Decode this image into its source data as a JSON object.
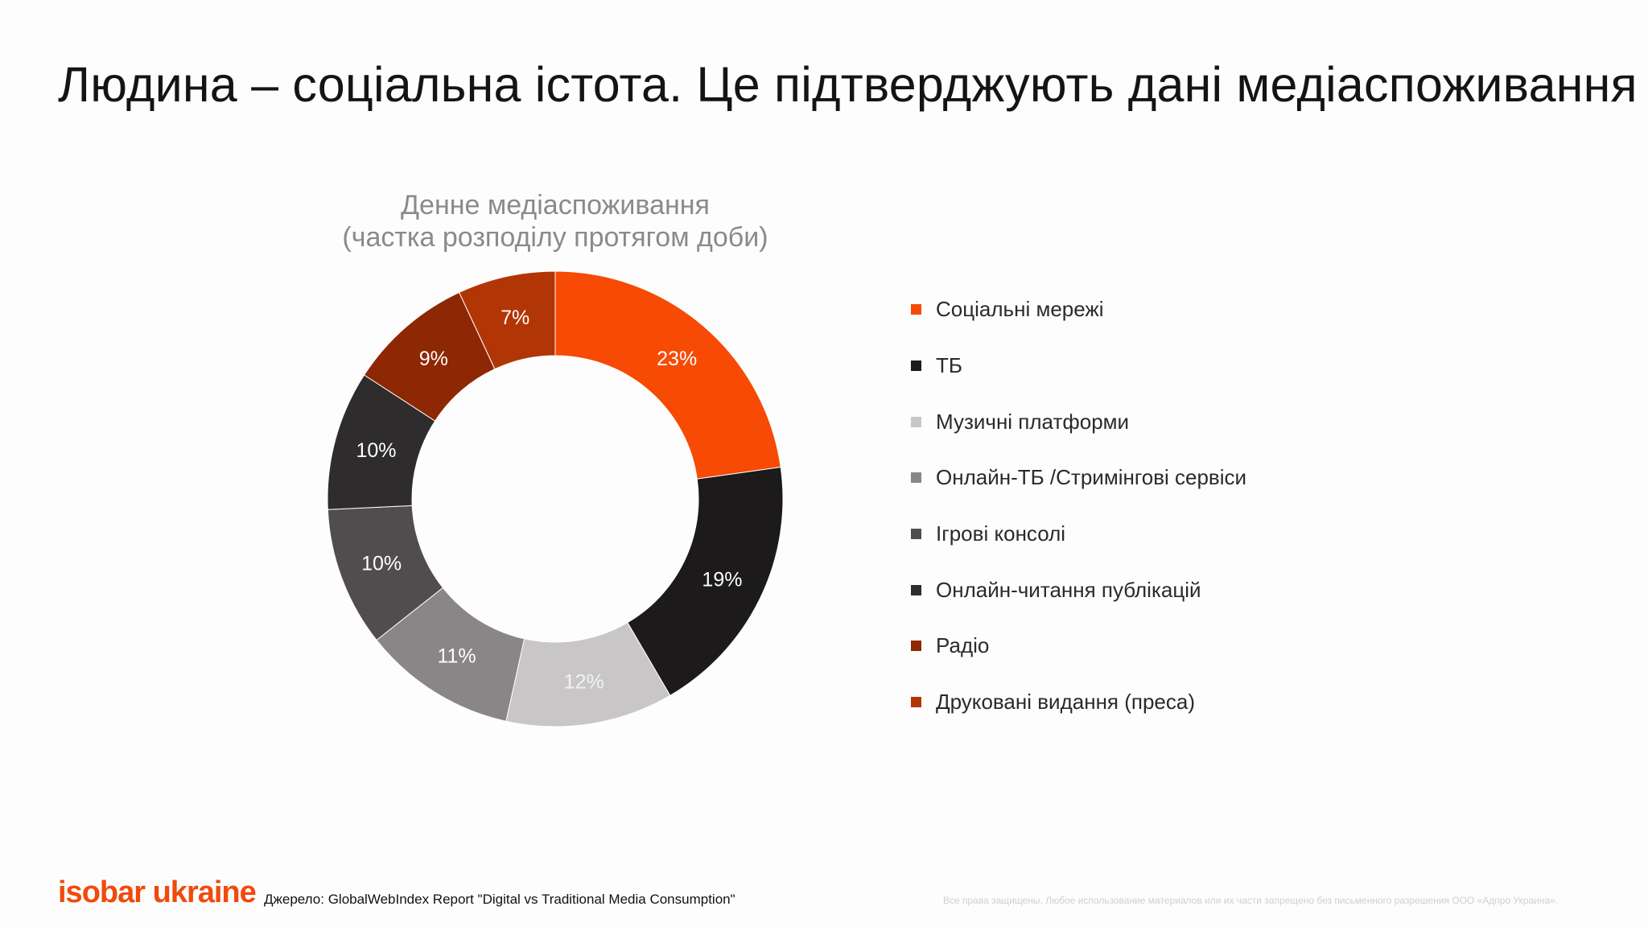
{
  "header": {
    "title": "Людина – соціальна істота. Це підтверджують дані медіаспоживання"
  },
  "footer": {
    "logo_text": "isobar ukraine",
    "source": "Джерело: GlobalWebIndex Report \"Digital vs Traditional Media Consumption\"",
    "rights": "Все права защищены. Любое использование материалов или их части запрещено без письменного разрешения ООО «Адпро Украина»."
  },
  "chart_data": {
    "type": "pie",
    "donut": true,
    "title_line1": "Денне медіаспоживання",
    "title_line2": "(частка розподілу протягом доби)",
    "legend_position": "right",
    "categories": [
      "Соціальні мережі",
      "ТБ",
      "Музичні платформи",
      "Онлайн-ТБ /Стримінгові сервіси",
      "Ігрові консолі",
      "Онлайн-читання публікацій",
      "Радіо",
      "Друковані видання (преса)"
    ],
    "values": [
      23,
      19,
      12,
      11,
      10,
      10,
      9,
      7
    ],
    "labels": [
      "23%",
      "19%",
      "12%",
      "11%",
      "10%",
      "10%",
      "9%",
      "7%"
    ],
    "colors": [
      "#f74a05",
      "#1c1a1b",
      "#c9c6c7",
      "#8a8687",
      "#514d4e",
      "#2e2c2d",
      "#8e2704",
      "#b23506"
    ],
    "label_colors": [
      "#ffffff",
      "#ffffff",
      "#f2f2f2",
      "#ffffff",
      "#ffffff",
      "#ffffff",
      "#ffffff",
      "#ffffff"
    ]
  }
}
